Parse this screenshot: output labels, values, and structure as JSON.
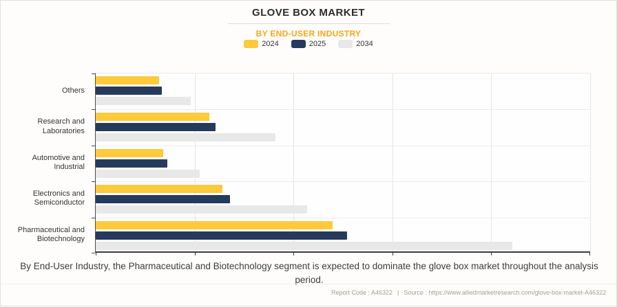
{
  "header": {
    "title": "GLOVE BOX MARKET",
    "subtitle": "BY END-USER INDUSTRY"
  },
  "legend": [
    {
      "label": "2024",
      "color": "#fcca3b"
    },
    {
      "label": "2025",
      "color": "#263a5c"
    },
    {
      "label": "2034",
      "color": "#e8e8e8"
    }
  ],
  "chart_data": {
    "type": "bar",
    "orientation": "horizontal",
    "title": "GLOVE BOX MARKET",
    "subtitle": "BY END-USER INDUSTRY",
    "categories": [
      "Others",
      "Research and Laboratories",
      "Automotive and Industrial",
      "Electronics and Semiconductor",
      "Pharmaceutical and Biotechnology"
    ],
    "series": [
      {
        "name": "2024",
        "color": "#fcca3b",
        "values": [
          12.8,
          23.0,
          13.7,
          25.6,
          47.9
        ]
      },
      {
        "name": "2025",
        "color": "#263a5c",
        "values": [
          13.4,
          24.2,
          14.5,
          27.1,
          50.8
        ]
      },
      {
        "name": "2034",
        "color": "#e8e8e8",
        "values": [
          19.2,
          36.3,
          21.1,
          42.7,
          84.2
        ]
      }
    ],
    "xlim": [
      0,
      100
    ],
    "x_tick_labels_visible": false,
    "grid": true,
    "gridline_count": 5,
    "legend_position": "top",
    "category_order": "top-to-bottom"
  },
  "caption": {
    "text": "By End-User Industry, the Pharmaceutical and Biotechnology segment is expected to dominate the glove box market throughout the analysis period."
  },
  "footer": {
    "report_code": "Report Code : A46322",
    "separator": "|",
    "source": "Source : https://www.alliedmarketresearch.com/glove-box-market-A46322"
  }
}
